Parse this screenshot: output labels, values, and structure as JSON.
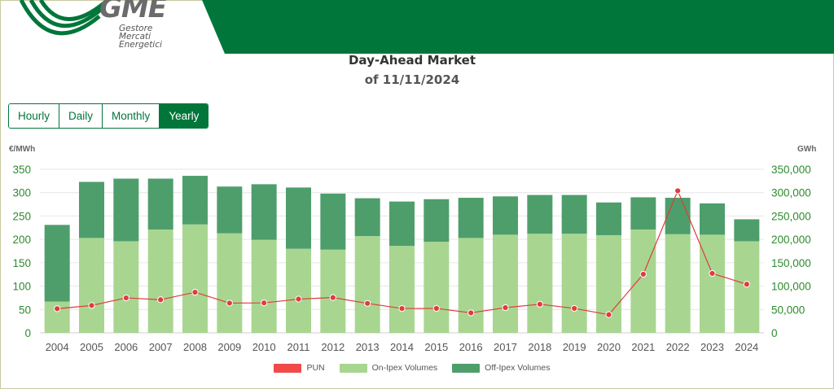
{
  "logo": {
    "brand": "GME",
    "line1": "Gestore",
    "line2": "Mercati",
    "line3": "Energetici"
  },
  "header": {
    "title": "Day-Ahead Market",
    "subtitle": "of 11/11/2024"
  },
  "tabs": [
    {
      "label": "Hourly",
      "active": false
    },
    {
      "label": "Daily",
      "active": false
    },
    {
      "label": "Monthly",
      "active": false
    },
    {
      "label": "Yearly",
      "active": true
    }
  ],
  "colors": {
    "brand": "#00763a",
    "pun": "#e03b3b",
    "on_ipex": "#a8d690",
    "off_ipex": "#4e9e6c"
  },
  "chart_data": {
    "type": "bar",
    "categories": [
      "2004",
      "2005",
      "2006",
      "2007",
      "2008",
      "2009",
      "2010",
      "2011",
      "2012",
      "2013",
      "2014",
      "2015",
      "2016",
      "2017",
      "2018",
      "2019",
      "2020",
      "2021",
      "2022",
      "2023",
      "2024"
    ],
    "left_axis": {
      "unit": "€/MWh",
      "ylim": [
        0,
        350
      ],
      "ticks": [
        "0",
        "50",
        "100",
        "150",
        "200",
        "250",
        "300",
        "350"
      ]
    },
    "right_axis": {
      "unit": "GWh",
      "ylim": [
        0,
        350000
      ],
      "ticks": [
        "0",
        "50,000",
        "100,000",
        "150,000",
        "200,000",
        "250,000",
        "300,000",
        "350,000"
      ]
    },
    "series": [
      {
        "name": "PUN",
        "type": "line",
        "axis": "left",
        "values": [
          51.6,
          58.6,
          74.8,
          70.9,
          86.9,
          63.7,
          64.1,
          72.2,
          75.5,
          63.0,
          52.1,
          52.3,
          42.8,
          53.9,
          61.3,
          52.3,
          38.9,
          125.5,
          303.9,
          127.2,
          104.0
        ]
      },
      {
        "name": "On-Ipex Volumes",
        "type": "bar",
        "stack": "volumes",
        "axis": "right",
        "values": [
          67000,
          203000,
          196000,
          221000,
          232000,
          213000,
          199000,
          180000,
          178000,
          207000,
          186000,
          195000,
          203000,
          210000,
          212000,
          212000,
          209000,
          221000,
          211000,
          210000,
          196000
        ]
      },
      {
        "name": "Off-Ipex Volumes",
        "type": "bar",
        "stack": "volumes",
        "axis": "right",
        "values": [
          164000,
          120000,
          134000,
          109000,
          104000,
          100000,
          119000,
          131000,
          120000,
          81000,
          95000,
          91000,
          86000,
          82000,
          83000,
          83000,
          70000,
          69000,
          78000,
          67000,
          47000
        ]
      }
    ],
    "legend_position": "bottom-center",
    "grid": true
  }
}
